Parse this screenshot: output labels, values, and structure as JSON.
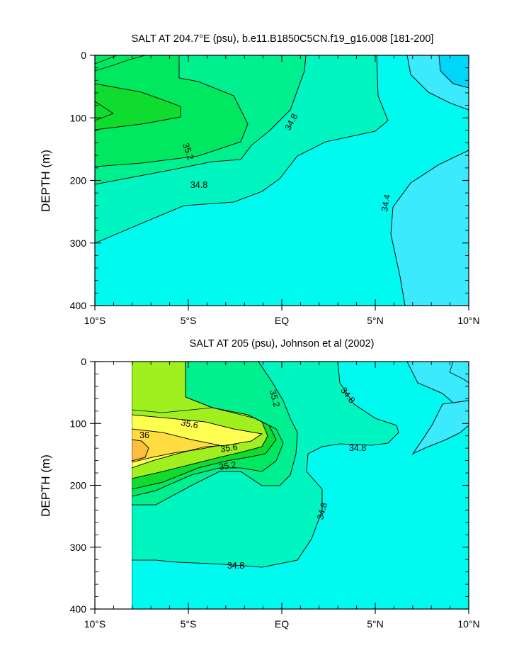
{
  "chart_data": [
    {
      "type": "contour",
      "title": "SALT AT 204.7°E (psu), b.e11.B1850C5CN.f19_g16.008 [181-200]",
      "xlabel": "",
      "ylabel": "DEPTH (m)",
      "xlim": [
        -10,
        10
      ],
      "ylim": [
        400,
        0
      ],
      "x_tick_labels": [
        "10°S",
        "5°S",
        "EQ",
        "5°N",
        "10°N"
      ],
      "y_tick_labels": [
        "0",
        "100",
        "200",
        "300",
        "400"
      ],
      "contour_labels": [
        {
          "text": "35.2",
          "x": -5,
          "depth": 155
        },
        {
          "text": "34.8",
          "x": 0.5,
          "depth": 110
        },
        {
          "text": "34.8",
          "x": -4.3,
          "depth": 205
        },
        {
          "text": "34.4",
          "x": 5.4,
          "depth": 268
        }
      ],
      "fill_colors": {
        "s34_2": "#00d6f8",
        "s34_4": "#3ceafe",
        "s34_6": "#00faf0",
        "s34_8": "#00f5c0",
        "s35_0": "#00f090",
        "s35_2": "#00e860",
        "s35_4": "#10dc30"
      }
    },
    {
      "type": "contour",
      "title": "SALT AT 205 (psu), Johnson et al (2002)",
      "xlabel": "",
      "ylabel": "DEPTH (m)",
      "xlim": [
        -10,
        10
      ],
      "ylim": [
        400,
        0
      ],
      "x_tick_labels": [
        "10°S",
        "5°S",
        "EQ",
        "5°N",
        "10°N"
      ],
      "y_tick_labels": [
        "0",
        "100",
        "200",
        "300",
        "400"
      ],
      "data_x_range": [
        -8,
        10
      ],
      "contour_labels": [
        {
          "text": "35.2",
          "x": -0.6,
          "depth": 40
        },
        {
          "text": "34.8",
          "x": 3.2,
          "depth": 60
        },
        {
          "text": "35.6",
          "x": -5.2,
          "depth": 110
        },
        {
          "text": "36",
          "x": -7,
          "depth": 125
        },
        {
          "text": "35.6",
          "x": -3,
          "depth": 145
        },
        {
          "text": "35.2",
          "x": -3,
          "depth": 170
        },
        {
          "text": "34.8",
          "x": 4.2,
          "depth": 143
        },
        {
          "text": "34.8",
          "x": 2.3,
          "depth": 240
        },
        {
          "text": "34.8",
          "x": -2.1,
          "depth": 328
        }
      ],
      "fill_colors": {
        "s34_4": "#3ceafe",
        "s34_6": "#00faf0",
        "s34_8": "#00f5c0",
        "s35_0": "#00f090",
        "s35_2": "#00e860",
        "s35_4": "#10dc30",
        "s35_6": "#a0f020",
        "s35_8": "#ffff50",
        "s36_0": "#ffdc40",
        "s36_2": "#fcbe40"
      }
    }
  ]
}
